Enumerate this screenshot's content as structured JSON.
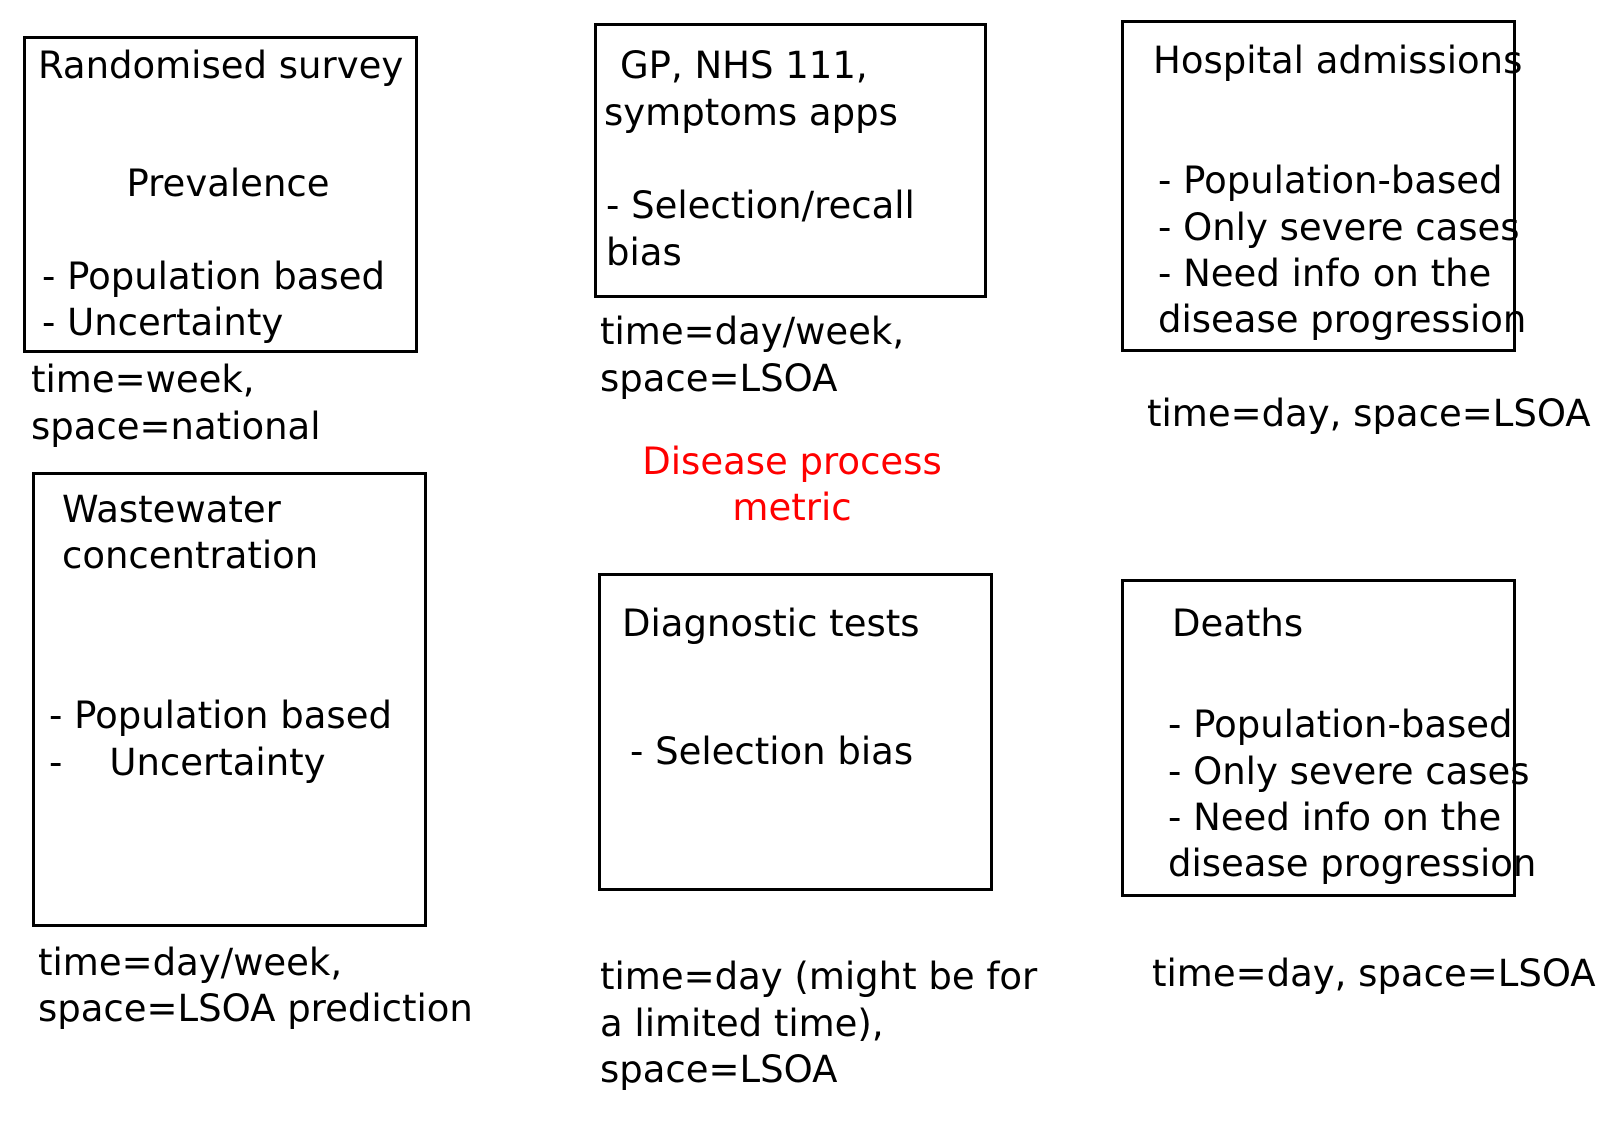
{
  "colors": {
    "text": "#000000",
    "border": "#000000",
    "center_label": "#ff0000",
    "background": "#ffffff"
  },
  "center": {
    "lines": [
      "Disease process",
      "metric"
    ]
  },
  "boxes": {
    "survey": {
      "title": "Randomised survey",
      "subtitle": "Prevalence",
      "points": [
        "- Population based",
        "- Uncertainty"
      ],
      "caption": [
        "time=week,",
        "space=national"
      ]
    },
    "gp": {
      "title": [
        "GP, NHS 111,",
        "symptoms apps"
      ],
      "points": [
        "- Selection/recall",
        "bias"
      ],
      "caption": [
        "time=day/week,",
        "space=LSOA"
      ]
    },
    "hospital": {
      "title": "Hospital admissions",
      "points": [
        "- Population-based",
        "- Only severe cases",
        "- Need info on the",
        "disease progression"
      ],
      "caption": [
        "time=day, space=LSOA"
      ]
    },
    "wastewater": {
      "title": [
        "Wastewater",
        "concentration"
      ],
      "points": [
        "- Population based",
        "-    Uncertainty"
      ],
      "caption": [
        "time=day/week,",
        "space=LSOA prediction"
      ]
    },
    "diagnostic": {
      "title": "Diagnostic tests",
      "points": [
        "- Selection bias"
      ],
      "caption": [
        "time=day (might be for",
        "a limited time),",
        "space=LSOA"
      ]
    },
    "deaths": {
      "title": "Deaths",
      "points": [
        "- Population-based",
        "- Only severe cases",
        "- Need info on the",
        "disease progression"
      ],
      "caption": [
        "time=day, space=LSOA"
      ]
    }
  }
}
